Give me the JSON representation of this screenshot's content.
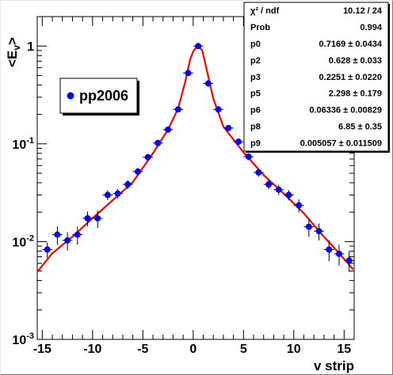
{
  "chart_data": {
    "type": "scatter",
    "title": "",
    "xlabel": "v strip",
    "ylabel": "<E_v>",
    "ylabel_main": "<E",
    "ylabel_sub": "v",
    "ylabel_close": ">",
    "xlim": [
      -15.5,
      16
    ],
    "ylim": [
      0.001,
      2.0
    ],
    "yscale": "log",
    "grid": false,
    "legend_position": "top-left",
    "x_ticks": [
      -15,
      -10,
      -5,
      0,
      5,
      10,
      15
    ],
    "x_tick_labels": [
      "-15",
      "-10",
      "-5",
      "0",
      "5",
      "10",
      "15"
    ],
    "y_ticks": [
      0.001,
      0.01,
      0.1,
      1
    ],
    "y_tick_labels": [
      {
        "base": "10",
        "exp": "-3"
      },
      {
        "base": "10",
        "exp": "-2"
      },
      {
        "base": "10",
        "exp": "-1"
      },
      {
        "base": "1",
        "exp": ""
      }
    ],
    "series": [
      {
        "name": "pp2006",
        "color": "#0000ff",
        "x": [
          -14.5,
          -13.5,
          -12.5,
          -11.5,
          -10.5,
          -9.5,
          -8.5,
          -7.5,
          -6.5,
          -5.5,
          -4.5,
          -3.5,
          -2.5,
          -1.5,
          -0.5,
          0.5,
          1.5,
          2.5,
          3.5,
          4.5,
          5.5,
          6.5,
          7.5,
          8.5,
          9.5,
          10.5,
          11.5,
          12.5,
          13.5,
          14.5,
          15.5
        ],
        "y": [
          0.0083,
          0.0118,
          0.0103,
          0.0118,
          0.0173,
          0.0173,
          0.03,
          0.031,
          0.0385,
          0.052,
          0.073,
          0.102,
          0.14,
          0.225,
          0.53,
          1.0,
          0.415,
          0.225,
          0.145,
          0.105,
          0.074,
          0.051,
          0.0385,
          0.034,
          0.03,
          0.0235,
          0.0142,
          0.0128,
          0.0083,
          0.0075,
          0.0064
        ],
        "yerr": [
          0.0015,
          0.0025,
          0.0022,
          0.0025,
          0.003,
          0.0035,
          0.0035,
          0.0035,
          0.004,
          0.0045,
          0.006,
          0.008,
          0.01,
          0.015,
          0.025,
          0.05,
          0.025,
          0.015,
          0.01,
          0.007,
          0.006,
          0.005,
          0.004,
          0.004,
          0.0035,
          0.0035,
          0.003,
          0.0025,
          0.002,
          0.0018,
          0.0015
        ]
      },
      {
        "name": "fit",
        "color": "#ff0000",
        "x": [
          -15.5,
          -14,
          -12,
          -10,
          -8,
          -6,
          -4,
          -2.5,
          -1.5,
          -0.8,
          -0.3,
          0,
          0.3,
          0.6,
          0.9,
          1.3,
          2,
          3,
          5,
          7,
          9,
          11,
          13,
          14.5,
          15.9
        ],
        "y": [
          0.0049,
          0.0076,
          0.0112,
          0.0174,
          0.0265,
          0.0405,
          0.08,
          0.14,
          0.23,
          0.43,
          0.73,
          0.88,
          0.97,
          0.98,
          0.9,
          0.6,
          0.29,
          0.15,
          0.082,
          0.048,
          0.031,
          0.0195,
          0.0112,
          0.0076,
          0.0052
        ]
      }
    ],
    "stats_box": {
      "rows": [
        {
          "label": "χ² / ndf",
          "value": "10.12 / 24"
        },
        {
          "label": "Prob",
          "value": "0.994"
        },
        {
          "label": "p0",
          "value": "0.7169 ± 0.0434"
        },
        {
          "label": "p2",
          "value": "0.628 ± 0.033"
        },
        {
          "label": "p3",
          "value": "0.2251 ± 0.0220"
        },
        {
          "label": "p5",
          "value": "2.298 ± 0.179"
        },
        {
          "label": "p6",
          "value": "0.06336 ± 0.00829"
        },
        {
          "label": "p8",
          "value": "6.85 ± 0.35"
        },
        {
          "label": "p9",
          "value": "0.005057 ± 0.011509"
        }
      ]
    }
  }
}
